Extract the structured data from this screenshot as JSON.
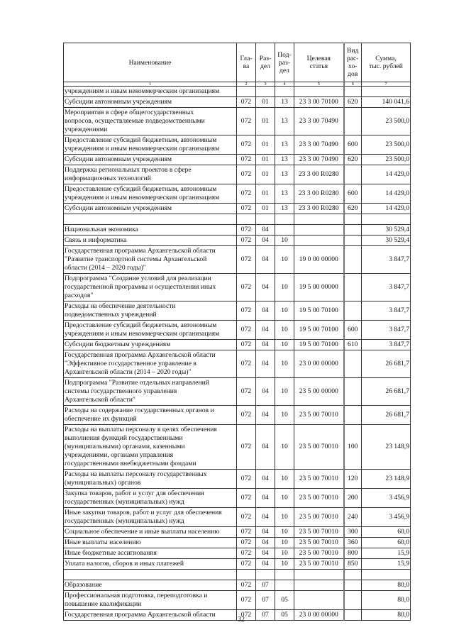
{
  "header": {
    "name": "Наименование",
    "glava": "Гла-\nва",
    "razdel": "Раз-\nдел",
    "podrazdel": "Под-\nраз-\nдел",
    "target": "Целевая\nстатья",
    "vid": "Вид\nрас-\nхо-\nдов",
    "sum": "Сумма,\nтыс. рублей"
  },
  "column_numbers": [
    "1",
    "2",
    "3",
    "4",
    "5",
    "6",
    "7"
  ],
  "rows": [
    {
      "name": "учреждениям и иным некоммерческим организациям",
      "g": "",
      "r": "",
      "p": "",
      "t": "",
      "v": "",
      "s": ""
    },
    {
      "name": "Субсидии автономным учреждениям",
      "g": "072",
      "r": "01",
      "p": "13",
      "t": "23 3 00 70100",
      "v": "620",
      "s": "140 041,6"
    },
    {
      "name": "Мероприятия в сфере общегосударственных\nвопросов, осуществляемые подведомственными\nучреждениями",
      "g": "072",
      "r": "01",
      "p": "13",
      "t": "23 3 00 70490",
      "v": "",
      "s": "23 500,0"
    },
    {
      "name": "Предоставление субсидий бюджетным, автономным\nучреждениям и иным некоммерческим организациям",
      "g": "072",
      "r": "01",
      "p": "13",
      "t": "23 3 00 70490",
      "v": "600",
      "s": "23 500,0"
    },
    {
      "name": "Субсидии автономным учреждениям",
      "g": "072",
      "r": "01",
      "p": "13",
      "t": "23 3 00 70490",
      "v": "620",
      "s": "23 500,0"
    },
    {
      "name": "Поддержка региональных проектов в сфере\nинформационных технологий",
      "g": "072",
      "r": "01",
      "p": "13",
      "t": "23 3 00 R0280",
      "v": "",
      "s": "14 429,0"
    },
    {
      "name": "Предоставление субсидий бюджетным, автономным\nучреждениям и иным некоммерческим организациям",
      "g": "072",
      "r": "01",
      "p": "13",
      "t": "23 3 00 R0280",
      "v": "600",
      "s": "14 429,0"
    },
    {
      "name": "Субсидии автономным учреждениям",
      "g": "072",
      "r": "01",
      "p": "13",
      "t": "23 3 00 R0280",
      "v": "620",
      "s": "14 429,0"
    },
    {
      "name": "",
      "g": "",
      "r": "",
      "p": "",
      "t": "",
      "v": "",
      "s": ""
    },
    {
      "name": "Национальная экономика",
      "g": "072",
      "r": "04",
      "p": "",
      "t": "",
      "v": "",
      "s": "30 529,4"
    },
    {
      "name": "Связь и информатика",
      "g": "072",
      "r": "04",
      "p": "10",
      "t": "",
      "v": "",
      "s": "30 529,4"
    },
    {
      "name": "Государственная программа Архангельской области\n\"Развитие транспортной системы Архангельской\nобласти (2014 – 2020 годы)\"",
      "g": "072",
      "r": "04",
      "p": "10",
      "t": "19 0 00 00000",
      "v": "",
      "s": "3 847,7"
    },
    {
      "name": "Подпрограмма \"Создание условий для реализации\nгосударственной программы и осуществления иных\nрасходов\"",
      "g": "072",
      "r": "04",
      "p": "10",
      "t": "19 5 00 00000",
      "v": "",
      "s": "3 847,7"
    },
    {
      "name": "Расходы на обеспечение деятельности\nподведомственных учреждений",
      "g": "072",
      "r": "04",
      "p": "10",
      "t": "19 5 00 70100",
      "v": "",
      "s": "3 847,7"
    },
    {
      "name": "Предоставление субсидий бюджетным, автономным\nучреждениям и иным некоммерческим организациям",
      "g": "072",
      "r": "04",
      "p": "10",
      "t": "19 5 00 70100",
      "v": "600",
      "s": "3 847,7"
    },
    {
      "name": "Субсидии бюджетным учреждениям",
      "g": "072",
      "r": "04",
      "p": "10",
      "t": "19 5 00 70100",
      "v": "610",
      "s": "3 847,7"
    },
    {
      "name": "Государственная программа Архангельской области\n\"Эффективное государственное управление в\nАрхангельской области (2014 – 2020 годы)\"",
      "g": "072",
      "r": "04",
      "p": "10",
      "t": "23 0 00 00000",
      "v": "",
      "s": "26 681,7"
    },
    {
      "name": "Подпрограмма \"Развитие отдельных направлений\nсистемы государственного управления\nАрхангельской области\"",
      "g": "072",
      "r": "04",
      "p": "10",
      "t": "23 5 00 00000",
      "v": "",
      "s": "26 681,7"
    },
    {
      "name": "Расходы на содержание государственных органов и\nобеспечение их функций",
      "g": "072",
      "r": "04",
      "p": "10",
      "t": "23 5 00 70010",
      "v": "",
      "s": "26 681,7"
    },
    {
      "name": "Расходы на выплаты персоналу в целях обеспечения\nвыполнения функций государственными\n(муниципальными) органами, казенными\nучреждениями, органами управления\nгосударственными внебюджетными фондами",
      "g": "072",
      "r": "04",
      "p": "10",
      "t": "23 5 00 70010",
      "v": "100",
      "s": "23 148,9"
    },
    {
      "name": "Расходы на выплаты персоналу государственных\n(муниципальных) органов",
      "g": "072",
      "r": "04",
      "p": "10",
      "t": "23 5 00 70010",
      "v": "120",
      "s": "23 148,9"
    },
    {
      "name": "Закупка товаров, работ и услуг для обеспечения\nгосударственных (муниципальных) нужд",
      "g": "072",
      "r": "04",
      "p": "10",
      "t": "23 5 00 70010",
      "v": "200",
      "s": "3 456,9"
    },
    {
      "name": "Иные закупки товаров, работ и услуг для обеспечения\nгосударственных (муниципальных) нужд",
      "g": "072",
      "r": "04",
      "p": "10",
      "t": "23 5 00 70010",
      "v": "240",
      "s": "3 456,9"
    },
    {
      "name": "Социальное обеспечение и иные выплаты населению",
      "g": "072",
      "r": "04",
      "p": "10",
      "t": "23 5 00 70010",
      "v": "300",
      "s": "60,0"
    },
    {
      "name": "Иные выплаты населению",
      "g": "072",
      "r": "04",
      "p": "10",
      "t": "23 5 00 70010",
      "v": "360",
      "s": "60,0"
    },
    {
      "name": "Иные бюджетные ассигнования",
      "g": "072",
      "r": "04",
      "p": "10",
      "t": "23 5 00 70010",
      "v": "800",
      "s": "15,9"
    },
    {
      "name": "Уплата налогов, сборов и иных платежей",
      "g": "072",
      "r": "04",
      "p": "10",
      "t": "23 5 00 70010",
      "v": "850",
      "s": "15,9"
    },
    {
      "name": "",
      "g": "",
      "r": "",
      "p": "",
      "t": "",
      "v": "",
      "s": ""
    },
    {
      "name": "Образование",
      "g": "072",
      "r": "07",
      "p": "",
      "t": "",
      "v": "",
      "s": "80,0"
    },
    {
      "name": "Профессиональная подготовка, переподготовка и\nповышение квалификации",
      "g": "072",
      "r": "07",
      "p": "05",
      "t": "",
      "v": "",
      "s": "80,0"
    },
    {
      "name": "Государственная программа Архангельской области",
      "g": "072",
      "r": "07",
      "p": "05",
      "t": "23 0 00 00000",
      "v": "",
      "s": "80,0"
    }
  ],
  "page_number": "32"
}
